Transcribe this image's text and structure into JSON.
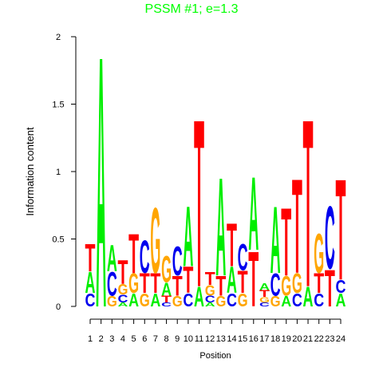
{
  "chart_data": {
    "type": "sequence-logo",
    "title": "PSSM #1; e=1.3",
    "title_color": "#00ff00",
    "x_label": "Position",
    "y_label": "Information content",
    "categories": [
      1,
      2,
      3,
      4,
      5,
      6,
      7,
      8,
      9,
      10,
      11,
      12,
      13,
      14,
      15,
      16,
      17,
      18,
      19,
      20,
      21,
      22,
      23,
      24
    ],
    "colors": {
      "A": "#00ee00",
      "C": "#0000ee",
      "G": "#ffa500",
      "T": "#ff0000"
    },
    "stacks": [
      [
        {
          "letter": "C",
          "value": 0.1
        },
        {
          "letter": "A",
          "value": 0.16
        },
        {
          "letter": "T",
          "value": 0.21
        }
      ],
      [
        {
          "letter": "A",
          "value": 1.92
        }
      ],
      [
        {
          "letter": "G",
          "value": 0.08
        },
        {
          "letter": "C",
          "value": 0.18
        },
        {
          "letter": "A",
          "value": 0.2
        }
      ],
      [
        {
          "letter": "A",
          "value": 0.03
        },
        {
          "letter": "C",
          "value": 0.06
        },
        {
          "letter": "G",
          "value": 0.08
        },
        {
          "letter": "T",
          "value": 0.18
        }
      ],
      [
        {
          "letter": "A",
          "value": 0.1
        },
        {
          "letter": "G",
          "value": 0.15
        },
        {
          "letter": "T",
          "value": 0.3
        }
      ],
      [
        {
          "letter": "G",
          "value": 0.1
        },
        {
          "letter": "T",
          "value": 0.15
        },
        {
          "letter": "C",
          "value": 0.25
        }
      ],
      [
        {
          "letter": "A",
          "value": 0.1
        },
        {
          "letter": "T",
          "value": 0.15
        },
        {
          "letter": "G",
          "value": 0.5
        }
      ],
      [
        {
          "letter": "C",
          "value": 0.03
        },
        {
          "letter": "T",
          "value": 0.05
        },
        {
          "letter": "A",
          "value": 0.1
        },
        {
          "letter": "G",
          "value": 0.2
        }
      ],
      [
        {
          "letter": "G",
          "value": 0.08
        },
        {
          "letter": "T",
          "value": 0.15
        },
        {
          "letter": "C",
          "value": 0.22
        }
      ],
      [
        {
          "letter": "C",
          "value": 0.1
        },
        {
          "letter": "T",
          "value": 0.2
        },
        {
          "letter": "A",
          "value": 0.46
        }
      ],
      [
        {
          "letter": "A",
          "value": 0.15
        },
        {
          "letter": "T",
          "value": 1.28
        }
      ],
      [
        {
          "letter": "A",
          "value": 0.03
        },
        {
          "letter": "C",
          "value": 0.05
        },
        {
          "letter": "G",
          "value": 0.08
        },
        {
          "letter": "T",
          "value": 0.1
        }
      ],
      [
        {
          "letter": "G",
          "value": 0.08
        },
        {
          "letter": "T",
          "value": 0.15
        },
        {
          "letter": "A",
          "value": 0.75
        }
      ],
      [
        {
          "letter": "C",
          "value": 0.1
        },
        {
          "letter": "A",
          "value": 0.2
        },
        {
          "letter": "T",
          "value": 0.33
        }
      ],
      [
        {
          "letter": "G",
          "value": 0.1
        },
        {
          "letter": "T",
          "value": 0.17
        },
        {
          "letter": "C",
          "value": 0.2
        }
      ],
      [
        {
          "letter": "T",
          "value": 0.42
        },
        {
          "letter": "A",
          "value": 0.56
        }
      ],
      [
        {
          "letter": "C",
          "value": 0.03
        },
        {
          "letter": "G",
          "value": 0.04
        },
        {
          "letter": "T",
          "value": 0.05
        },
        {
          "letter": "A",
          "value": 0.05
        }
      ],
      [
        {
          "letter": "G",
          "value": 0.08
        },
        {
          "letter": "C",
          "value": 0.17
        },
        {
          "letter": "A",
          "value": 0.51
        }
      ],
      [
        {
          "letter": "A",
          "value": 0.08
        },
        {
          "letter": "G",
          "value": 0.15
        },
        {
          "letter": "T",
          "value": 0.52
        }
      ],
      [
        {
          "letter": "C",
          "value": 0.1
        },
        {
          "letter": "G",
          "value": 0.15
        },
        {
          "letter": "T",
          "value": 0.72
        }
      ],
      [
        {
          "letter": "A",
          "value": 0.15
        },
        {
          "letter": "T",
          "value": 1.28
        }
      ],
      [
        {
          "letter": "C",
          "value": 0.1
        },
        {
          "letter": "T",
          "value": 0.15
        },
        {
          "letter": "G",
          "value": 0.3
        }
      ],
      [
        {
          "letter": "T",
          "value": 0.28
        },
        {
          "letter": "C",
          "value": 0.48
        }
      ],
      [
        {
          "letter": "A",
          "value": 0.1
        },
        {
          "letter": "C",
          "value": 0.1
        },
        {
          "letter": "T",
          "value": 0.77
        }
      ]
    ],
    "ylim": [
      0,
      2
    ],
    "yticks": [
      0,
      0.5,
      1,
      1.5,
      2
    ]
  }
}
